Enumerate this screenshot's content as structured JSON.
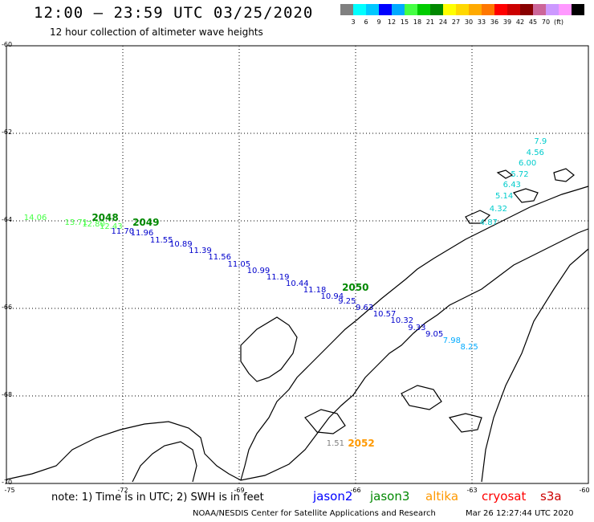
{
  "title": "12:00 – 23:59 UTC 03/25/2020",
  "subtitle": "12 hour collection of altimeter wave heights",
  "colorbar": {
    "colors": [
      "#808080",
      "#00ffff",
      "#00c8ff",
      "#0000ff",
      "#00aaff",
      "#44ff44",
      "#00cc00",
      "#008800",
      "#ffff00",
      "#ffd800",
      "#ffaa00",
      "#ff7700",
      "#ff0000",
      "#cc0000",
      "#880000",
      "#cc6699",
      "#cc99ff",
      "#ff99ff",
      "#000000"
    ],
    "labels": [
      "3",
      "6",
      "9",
      "12",
      "15",
      "18",
      "21",
      "24",
      "27",
      "30",
      "33",
      "36",
      "39",
      "42",
      "45",
      "70",
      "(ft)"
    ]
  },
  "axes": {
    "lat_labels": [
      "-60",
      "-62",
      "-64",
      "-66",
      "-68",
      "-70"
    ],
    "lon_labels": [
      "-75",
      "-72",
      "-69",
      "-66",
      "-63",
      "-60"
    ],
    "lat_range": [
      -70,
      -60
    ],
    "lon_range": [
      -75,
      -60
    ]
  },
  "passes": [
    {
      "label": "2048",
      "color": "#008800",
      "lat": -63.95,
      "lon": -72.8
    },
    {
      "label": "2049",
      "color": "#008800",
      "lat": -64.05,
      "lon": -71.75
    },
    {
      "label": "2050",
      "color": "#008800",
      "lat": -65.55,
      "lon": -66.35
    },
    {
      "label": "2052",
      "color": "#ff9900",
      "lat": -69.1,
      "lon": -66.2
    }
  ],
  "wave_heights": [
    {
      "v": "14.06",
      "color": "#44ff44",
      "lat": -63.95,
      "lon": -74.55
    },
    {
      "v": "13.71",
      "color": "#44ff44",
      "lat": -64.05,
      "lon": -73.5
    },
    {
      "v": "12.80",
      "color": "#44ff44",
      "lat": -64.1,
      "lon": -73.05
    },
    {
      "v": "12.43",
      "color": "#44ff44",
      "lat": -64.15,
      "lon": -72.6
    },
    {
      "v": "11.70",
      "color": "#0000cc",
      "lat": -64.25,
      "lon": -72.3
    },
    {
      "v": "11.96",
      "color": "#0000cc",
      "lat": -64.3,
      "lon": -71.8
    },
    {
      "v": "11.55",
      "color": "#0000cc",
      "lat": -64.45,
      "lon": -71.3
    },
    {
      "v": "10.89",
      "color": "#0000cc",
      "lat": -64.55,
      "lon": -70.8
    },
    {
      "v": "11.39",
      "color": "#0000cc",
      "lat": -64.7,
      "lon": -70.3
    },
    {
      "v": "11.56",
      "color": "#0000cc",
      "lat": -64.85,
      "lon": -69.8
    },
    {
      "v": "11.05",
      "color": "#0000cc",
      "lat": -65.0,
      "lon": -69.3
    },
    {
      "v": "10.99",
      "color": "#0000cc",
      "lat": -65.15,
      "lon": -68.8
    },
    {
      "v": "11.19",
      "color": "#0000cc",
      "lat": -65.3,
      "lon": -68.3
    },
    {
      "v": "10.44",
      "color": "#0000cc",
      "lat": -65.45,
      "lon": -67.8
    },
    {
      "v": "11.18",
      "color": "#0000cc",
      "lat": -65.6,
      "lon": -67.35
    },
    {
      "v": "10.94",
      "color": "#0000cc",
      "lat": -65.75,
      "lon": -66.9
    },
    {
      "v": "9.25",
      "color": "#0000cc",
      "lat": -65.85,
      "lon": -66.45
    },
    {
      "v": "9.63",
      "color": "#0000cc",
      "lat": -66.0,
      "lon": -66.0
    },
    {
      "v": "10.57",
      "color": "#0000cc",
      "lat": -66.15,
      "lon": -65.55
    },
    {
      "v": "10.32",
      "color": "#0000cc",
      "lat": -66.3,
      "lon": -65.1
    },
    {
      "v": "9.33",
      "color": "#0000cc",
      "lat": -66.45,
      "lon": -64.65
    },
    {
      "v": "9.05",
      "color": "#0000cc",
      "lat": -66.6,
      "lon": -64.2
    },
    {
      "v": "7.98",
      "color": "#00aaff",
      "lat": -66.75,
      "lon": -63.75
    },
    {
      "v": "8.25",
      "color": "#00aaff",
      "lat": -66.9,
      "lon": -63.3
    },
    {
      "v": "4.87",
      "color": "#00cccc",
      "lat": -64.05,
      "lon": -62.8
    },
    {
      "v": "4.32",
      "color": "#00cccc",
      "lat": -63.75,
      "lon": -62.55
    },
    {
      "v": "5.14",
      "color": "#00cccc",
      "lat": -63.45,
      "lon": -62.4
    },
    {
      "v": "6.43",
      "color": "#00cccc",
      "lat": -63.2,
      "lon": -62.2
    },
    {
      "v": "5.72",
      "color": "#00cccc",
      "lat": -62.95,
      "lon": -62.0
    },
    {
      "v": "6.00",
      "color": "#00cccc",
      "lat": -62.7,
      "lon": -61.8
    },
    {
      "v": "4.56",
      "color": "#00cccc",
      "lat": -62.45,
      "lon": -61.6
    },
    {
      "v": "7.9",
      "color": "#00cccc",
      "lat": -62.2,
      "lon": -61.4
    },
    {
      "v": "1.51",
      "color": "#808080",
      "lat": -69.1,
      "lon": -66.75
    }
  ],
  "note": "note: 1) Time is in UTC; 2) SWH is in feet",
  "satellites": [
    {
      "name": "jason2",
      "color": "#0000ff"
    },
    {
      "name": "jason3",
      "color": "#008800"
    },
    {
      "name": "altika",
      "color": "#ff9900"
    },
    {
      "name": "cryosat",
      "color": "#ff0000"
    },
    {
      "name": "s3a",
      "color": "#cc0000"
    }
  ],
  "credit": "NOAA/NESDIS Center for Satellite Applications and Research",
  "timestamp": "Mar 26 12:27:44 UTC 2020"
}
